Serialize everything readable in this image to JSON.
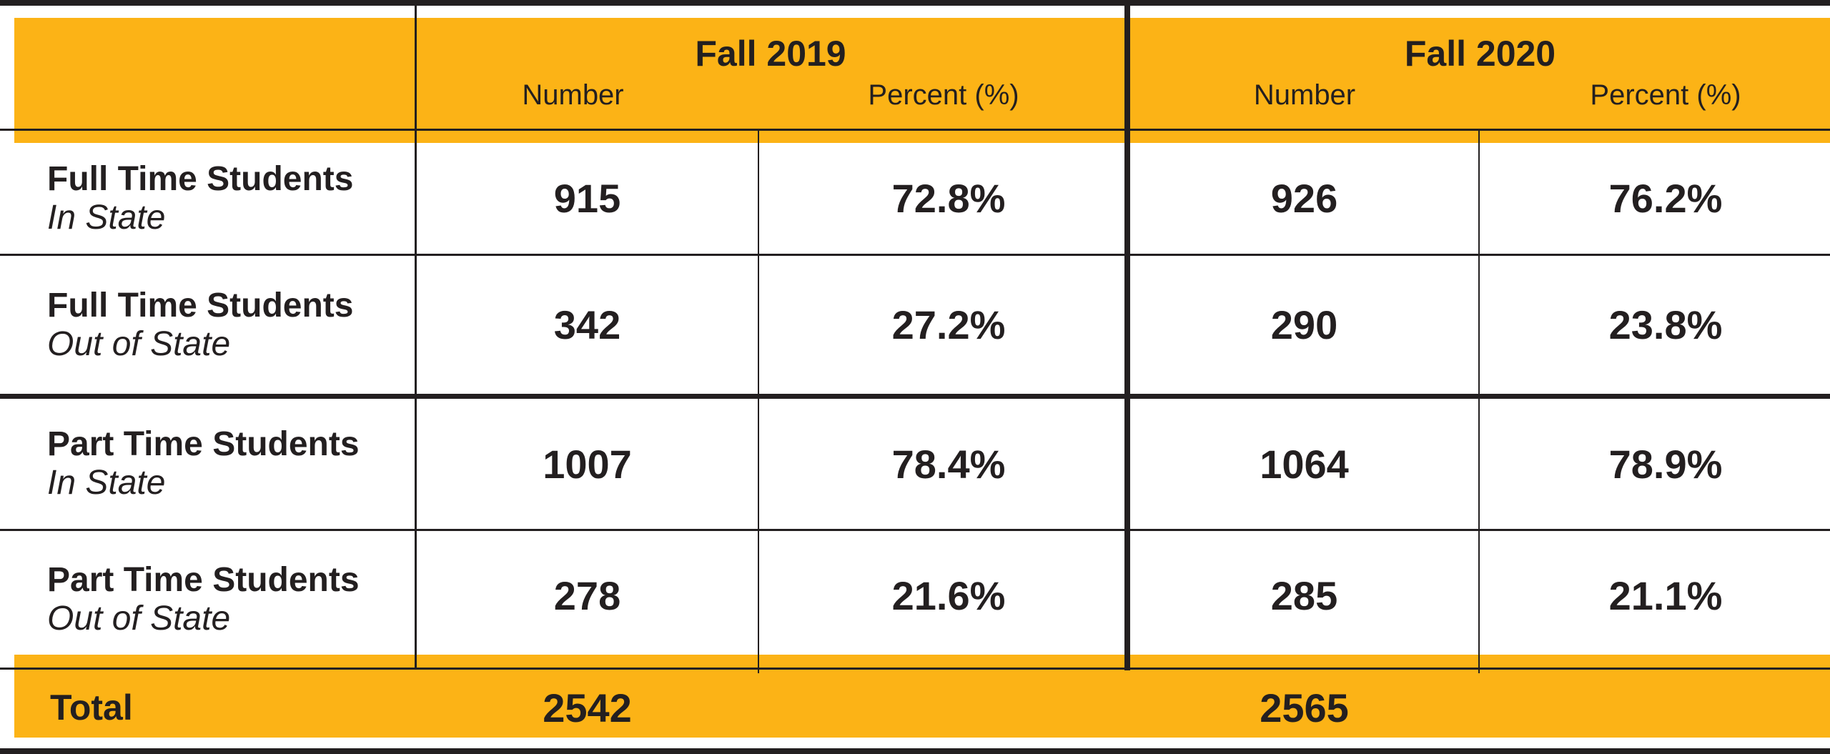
{
  "chart_data": {
    "type": "table",
    "column_groups": [
      "Fall 2019",
      "Fall 2020"
    ],
    "subheaders": [
      "Number",
      "Percent (%)",
      "Number",
      "Percent (%)"
    ],
    "rows": [
      {
        "label": "Full Time Students",
        "sublabel": "In State",
        "values": [
          "915",
          "72.8%",
          "926",
          "76.2%"
        ]
      },
      {
        "label": "Full Time Students",
        "sublabel": "Out of State",
        "values": [
          "342",
          "27.2%",
          "290",
          "23.8%"
        ]
      },
      {
        "label": "Part Time Students",
        "sublabel": "In State",
        "values": [
          "1007",
          "78.4%",
          "1064",
          "78.9%"
        ]
      },
      {
        "label": "Part Time Students",
        "sublabel": "Out of State",
        "values": [
          "278",
          "21.6%",
          "285",
          "21.1%"
        ]
      }
    ],
    "total": {
      "label": "Total",
      "values": [
        "2542",
        "2565"
      ]
    }
  },
  "colors": {
    "header_band": "#fcb316",
    "text": "#231f20",
    "lines": "#231f20"
  }
}
